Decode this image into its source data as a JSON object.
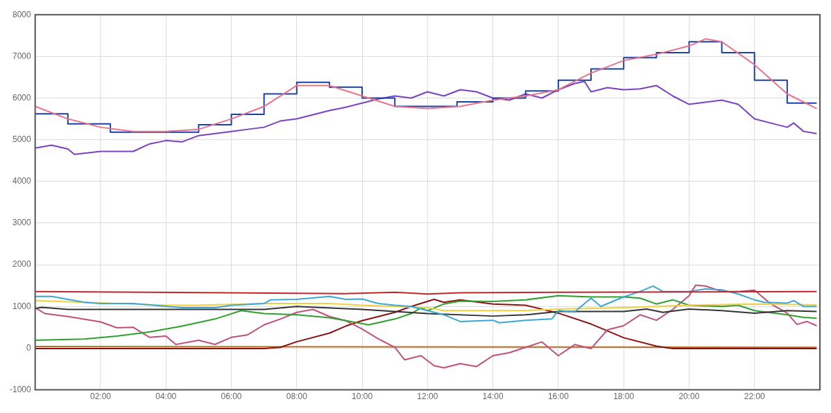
{
  "chart_data": {
    "type": "line",
    "marker": "none",
    "grid": true,
    "legend": false,
    "xlim": [
      0,
      24
    ],
    "xticks": [
      {
        "value": 2,
        "label": "02:00"
      },
      {
        "value": 4,
        "label": "04:00"
      },
      {
        "value": 6,
        "label": "06:00"
      },
      {
        "value": 8,
        "label": "08:00"
      },
      {
        "value": 10,
        "label": "10:00"
      },
      {
        "value": 12,
        "label": "12:00"
      },
      {
        "value": 14,
        "label": "14:00"
      },
      {
        "value": 16,
        "label": "16:00"
      },
      {
        "value": 18,
        "label": "18:00"
      },
      {
        "value": 20,
        "label": "20:00"
      },
      {
        "value": 22,
        "label": "22:00"
      }
    ],
    "ylim": [
      -1000,
      8000
    ],
    "yticks": [
      -1000,
      0,
      1000,
      2000,
      3000,
      4000,
      5000,
      6000,
      7000,
      8000
    ],
    "series": [
      {
        "color": "#e8738a",
        "x": [
          0,
          1,
          2,
          3,
          4,
          5,
          6,
          7,
          8,
          9,
          10,
          11,
          12,
          13,
          14,
          15,
          16,
          17,
          18,
          19,
          20,
          20.5,
          21,
          22,
          23,
          23.9
        ],
        "values": [
          5800,
          5500,
          5300,
          5200,
          5200,
          5250,
          5500,
          5800,
          6300,
          6300,
          6050,
          5800,
          5750,
          5800,
          5950,
          6050,
          6200,
          6600,
          6900,
          7050,
          7250,
          7420,
          7350,
          6800,
          6100,
          5750
        ]
      },
      {
        "type": "step",
        "color": "#1a3fa8",
        "x": [
          0,
          1,
          2.3,
          5,
          6,
          7,
          8,
          9,
          10,
          11,
          12.9,
          14,
          15,
          16,
          17,
          18,
          19,
          20,
          21,
          22,
          23,
          23.9
        ],
        "values": [
          5620,
          5380,
          5180,
          5360,
          5610,
          6100,
          6380,
          6260,
          6000,
          5800,
          5910,
          6000,
          6170,
          6430,
          6700,
          6970,
          7090,
          7350,
          7090,
          6430,
          5880,
          5880
        ]
      },
      {
        "color": "#7b3fc4",
        "x": [
          0,
          0.5,
          1,
          1.2,
          2,
          3,
          3.5,
          4,
          4.5,
          5,
          6,
          6.5,
          7,
          7.5,
          8,
          8.5,
          9,
          9.5,
          10,
          10.5,
          11,
          11.5,
          12,
          12.5,
          13,
          13.5,
          14,
          14.5,
          15,
          15.5,
          16,
          16.5,
          16.8,
          17,
          17.5,
          18,
          18.5,
          19,
          19.5,
          20,
          20.5,
          21,
          21.5,
          22,
          22.5,
          23,
          23.2,
          23.5,
          23.9
        ],
        "values": [
          4800,
          4870,
          4780,
          4650,
          4720,
          4720,
          4900,
          4980,
          4950,
          5100,
          5200,
          5250,
          5300,
          5450,
          5500,
          5600,
          5700,
          5780,
          5880,
          5980,
          6050,
          6000,
          6150,
          6050,
          6200,
          6150,
          6000,
          5950,
          6100,
          6000,
          6200,
          6350,
          6400,
          6150,
          6250,
          6200,
          6220,
          6300,
          6050,
          5850,
          5900,
          5950,
          5850,
          5500,
          5400,
          5300,
          5400,
          5200,
          5150
        ]
      },
      {
        "color": "#c0262d",
        "x": [
          0,
          9.5,
          11,
          12,
          13,
          16,
          23.9
        ],
        "values": [
          1360,
          1310,
          1340,
          1300,
          1330,
          1340,
          1360
        ]
      },
      {
        "color": "#3ba7d6",
        "x": [
          0,
          0.5,
          1,
          1.5,
          2,
          3,
          4.5,
          5.5,
          6,
          7,
          7.2,
          8,
          9,
          9.5,
          10,
          10.5,
          11,
          11.5,
          12,
          12.5,
          13,
          14,
          14.2,
          15,
          15.8,
          16,
          16.5,
          17,
          17.3,
          17.6,
          18,
          18.5,
          18.9,
          19.2,
          20,
          20.5,
          21,
          21.5,
          22,
          22.3,
          23,
          23.2,
          23.5,
          23.9
        ],
        "values": [
          1240,
          1240,
          1170,
          1100,
          1070,
          1070,
          970,
          970,
          1030,
          1070,
          1160,
          1170,
          1240,
          1170,
          1180,
          1070,
          1030,
          1000,
          900,
          800,
          640,
          670,
          610,
          670,
          700,
          900,
          870,
          1200,
          1000,
          1100,
          1230,
          1360,
          1490,
          1360,
          1360,
          1420,
          1400,
          1300,
          1160,
          1100,
          1080,
          1140,
          1000,
          1000
        ]
      },
      {
        "color": "#f0d040",
        "x": [
          0,
          4,
          5,
          7,
          9,
          10,
          12,
          12.5,
          15,
          16,
          18,
          20,
          22,
          23.9
        ],
        "values": [
          1140,
          1030,
          1030,
          1070,
          1070,
          1030,
          970,
          900,
          900,
          940,
          970,
          1030,
          1060,
          1040
        ]
      },
      {
        "color": "#333333",
        "x": [
          0,
          0.2,
          1,
          7,
          8,
          10,
          12,
          14,
          15,
          16,
          18,
          18.7,
          19.2,
          20,
          21,
          22,
          23,
          23.9
        ],
        "values": [
          950,
          980,
          930,
          930,
          1000,
          930,
          830,
          770,
          800,
          880,
          880,
          940,
          860,
          940,
          900,
          840,
          900,
          880
        ]
      },
      {
        "color": "#2ca02c",
        "x": [
          0,
          1.5,
          2.5,
          3.5,
          4.5,
          5.5,
          6.3,
          7,
          8,
          9,
          9.5,
          10.2,
          11,
          11.5,
          11.8,
          12,
          12.5,
          13,
          14,
          15,
          16,
          17,
          18,
          18.5,
          19,
          19.5,
          20,
          21,
          21.5,
          22,
          23,
          23.5,
          23.9
        ],
        "values": [
          190,
          220,
          290,
          390,
          530,
          700,
          900,
          830,
          800,
          730,
          660,
          560,
          700,
          830,
          970,
          900,
          1060,
          1130,
          1120,
          1160,
          1260,
          1230,
          1230,
          1200,
          1060,
          1160,
          1030,
          1000,
          1030,
          900,
          800,
          740,
          720
        ]
      },
      {
        "color": "#c0507a",
        "x": [
          0,
          0.3,
          1,
          2,
          2.5,
          3,
          3.5,
          4,
          4.3,
          5,
          5.5,
          6,
          6.5,
          7,
          7.5,
          8,
          8.5,
          9,
          9.5,
          10,
          10.5,
          11,
          11.3,
          11.8,
          12.2,
          12.5,
          13,
          13.5,
          14,
          14.5,
          15.5,
          16,
          16.5,
          17,
          17.5,
          18,
          18.5,
          19,
          19.5,
          20,
          20.2,
          20.5,
          21,
          21.5,
          22,
          22.5,
          23,
          23.3,
          23.6,
          23.9
        ],
        "values": [
          970,
          830,
          760,
          630,
          490,
          500,
          260,
          290,
          90,
          190,
          90,
          260,
          320,
          560,
          700,
          860,
          930,
          760,
          660,
          460,
          220,
          20,
          -280,
          -180,
          -420,
          -470,
          -370,
          -440,
          -180,
          -110,
          150,
          -180,
          85,
          -10,
          440,
          540,
          800,
          670,
          930,
          1260,
          1510,
          1490,
          1360,
          1360,
          1390,
          1060,
          840,
          570,
          640,
          540
        ]
      },
      {
        "color": "#8b1010",
        "x": [
          0,
          7,
          7.5,
          8,
          9,
          9.5,
          10,
          10.5,
          11,
          11.5,
          12.2,
          12.5,
          13,
          14,
          15,
          16,
          17,
          18,
          19,
          19.5,
          23.9
        ],
        "values": [
          -10,
          -10,
          20,
          155,
          360,
          530,
          660,
          760,
          860,
          1000,
          1170,
          1100,
          1160,
          1060,
          1030,
          840,
          580,
          250,
          50,
          -10,
          -10
        ]
      },
      {
        "color": "#b07030",
        "x": [
          0,
          23.9
        ],
        "values": [
          40,
          20
        ]
      }
    ]
  }
}
